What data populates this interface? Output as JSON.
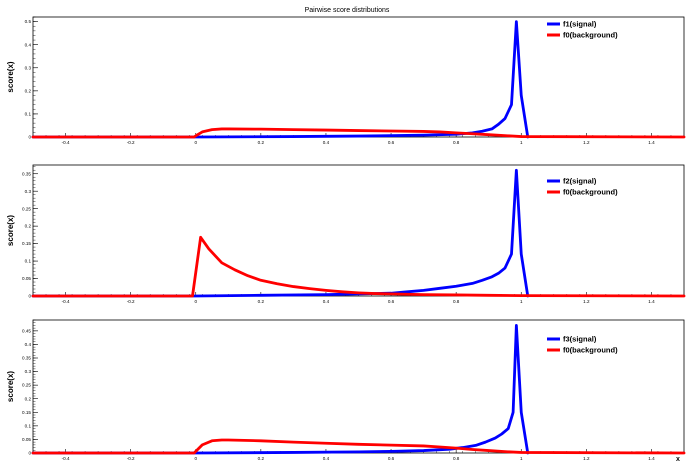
{
  "chart_data": {
    "title": "Pairwise score distributions",
    "xlabel": "x",
    "xlim": [
      -0.5,
      1.5
    ],
    "x_ticks": [
      -0.4,
      -0.2,
      0,
      0.2,
      0.4,
      0.6,
      0.8,
      1,
      1.2,
      1.4
    ],
    "x_tick_labels": [
      "-0.4",
      "-0.2",
      "0",
      "0.2",
      "0.4",
      "0.6",
      "0.8",
      "1",
      "1.2",
      "1.4"
    ],
    "panels": [
      {
        "type": "line",
        "ylabel": "score(x)",
        "ylim": [
          0,
          0.52
        ],
        "y_ticks": [
          0,
          0.1,
          0.2,
          0.3,
          0.4,
          0.5
        ],
        "y_tick_labels": [
          "0",
          "0.1",
          "0.2",
          "0.3",
          "0.4",
          "0.5"
        ],
        "legend_position": "top-right",
        "series": [
          {
            "name": "f1(signal)",
            "color": "#0000ff",
            "x": [
              -0.5,
              0.0,
              0.3,
              0.5,
              0.6,
              0.7,
              0.8,
              0.85,
              0.88,
              0.91,
              0.93,
              0.95,
              0.97,
              0.985,
              1.0,
              1.02
            ],
            "y": [
              0,
              0,
              0.002,
              0.004,
              0.006,
              0.008,
              0.012,
              0.018,
              0.025,
              0.035,
              0.055,
              0.08,
              0.14,
              0.5,
              0.18,
              0
            ]
          },
          {
            "name": "f0(background)",
            "color": "#ff0000",
            "x": [
              -0.5,
              -0.005,
              0.0,
              0.02,
              0.05,
              0.08,
              0.1,
              0.2,
              0.3,
              0.4,
              0.5,
              0.6,
              0.7,
              0.75,
              0.8,
              0.85,
              0.9,
              0.95,
              1.0,
              1.5
            ],
            "y": [
              0,
              0,
              0.005,
              0.022,
              0.032,
              0.035,
              0.035,
              0.034,
              0.032,
              0.03,
              0.028,
              0.026,
              0.024,
              0.022,
              0.018,
              0.014,
              0.01,
              0.006,
              0.002,
              0
            ]
          }
        ]
      },
      {
        "type": "line",
        "ylabel": "score(x)",
        "ylim": [
          0,
          0.375
        ],
        "y_ticks": [
          0,
          0.05,
          0.1,
          0.15,
          0.2,
          0.25,
          0.3,
          0.35
        ],
        "y_tick_labels": [
          "0",
          "0.05",
          "0.1",
          "0.15",
          "0.2",
          "0.25",
          "0.3",
          "0.35"
        ],
        "legend_position": "top-right",
        "series": [
          {
            "name": "f2(signal)",
            "color": "#0000ff",
            "x": [
              -0.5,
              0.0,
              0.2,
              0.4,
              0.5,
              0.6,
              0.65,
              0.7,
              0.75,
              0.8,
              0.85,
              0.88,
              0.91,
              0.93,
              0.95,
              0.97,
              0.985,
              1.0,
              1.02
            ],
            "y": [
              0,
              0,
              0.002,
              0.004,
              0.006,
              0.008,
              0.012,
              0.016,
              0.022,
              0.028,
              0.036,
              0.045,
              0.055,
              0.065,
              0.08,
              0.12,
              0.36,
              0.12,
              0
            ]
          },
          {
            "name": "f0(background)",
            "color": "#ff0000",
            "x": [
              -0.5,
              -0.01,
              0.015,
              0.04,
              0.08,
              0.12,
              0.16,
              0.2,
              0.25,
              0.3,
              0.35,
              0.4,
              0.45,
              0.5,
              0.55,
              0.6,
              0.7,
              0.8,
              0.9,
              1.0,
              1.5
            ],
            "y": [
              0,
              0,
              0.168,
              0.135,
              0.095,
              0.075,
              0.058,
              0.045,
              0.035,
              0.027,
              0.021,
              0.016,
              0.012,
              0.009,
              0.007,
              0.006,
              0.004,
              0.003,
              0.002,
              0.001,
              0
            ]
          }
        ]
      },
      {
        "type": "line",
        "ylabel": "score(x)",
        "ylim": [
          0,
          0.49
        ],
        "y_ticks": [
          0,
          0.05,
          0.1,
          0.15,
          0.2,
          0.25,
          0.3,
          0.35,
          0.4,
          0.45
        ],
        "y_tick_labels": [
          "0",
          "0.05",
          "0.1",
          "0.15",
          "0.2",
          "0.25",
          "0.3",
          "0.35",
          "0.4",
          "0.45"
        ],
        "legend_position": "top-right",
        "series": [
          {
            "name": "f3(signal)",
            "color": "#0000ff",
            "x": [
              -0.5,
              0.0,
              0.3,
              0.5,
              0.6,
              0.7,
              0.78,
              0.82,
              0.86,
              0.89,
              0.92,
              0.94,
              0.96,
              0.975,
              0.985,
              1.0,
              1.02
            ],
            "y": [
              0,
              0,
              0.002,
              0.004,
              0.006,
              0.009,
              0.014,
              0.02,
              0.028,
              0.04,
              0.055,
              0.07,
              0.09,
              0.15,
              0.47,
              0.15,
              0
            ]
          },
          {
            "name": "f0(background)",
            "color": "#ff0000",
            "x": [
              -0.5,
              -0.005,
              0.0,
              0.02,
              0.05,
              0.08,
              0.1,
              0.2,
              0.3,
              0.4,
              0.5,
              0.6,
              0.7,
              0.75,
              0.8,
              0.85,
              0.9,
              0.95,
              1.0,
              1.5
            ],
            "y": [
              0,
              0,
              0.006,
              0.03,
              0.045,
              0.048,
              0.048,
              0.045,
              0.04,
              0.036,
              0.032,
              0.029,
              0.026,
              0.022,
              0.018,
              0.013,
              0.009,
              0.005,
              0.002,
              0
            ]
          }
        ]
      }
    ]
  }
}
